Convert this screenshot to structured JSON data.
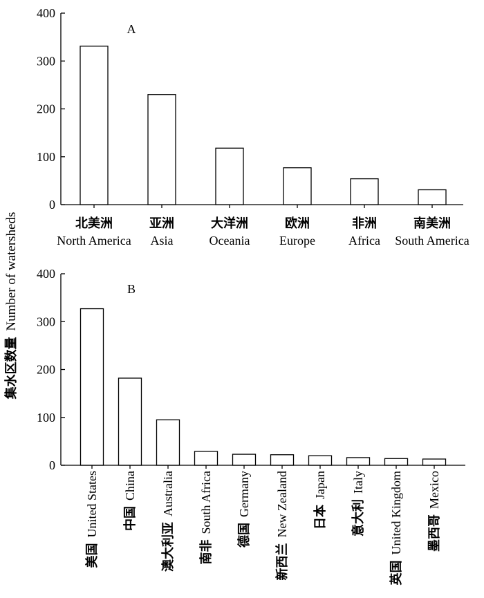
{
  "ylabel": {
    "cn": "集水区数量",
    "en": "Number of watersheds"
  },
  "chart_data": [
    {
      "type": "bar",
      "panel_label": "A",
      "ylim": [
        0,
        400
      ],
      "yticks": [
        "0",
        "100",
        "200",
        "300",
        "400"
      ],
      "categories": [
        {
          "cn": "北美洲",
          "en": "North America"
        },
        {
          "cn": "亚洲",
          "en": "Asia"
        },
        {
          "cn": "大洋洲",
          "en": "Oceania"
        },
        {
          "cn": "欧洲",
          "en": "Europe"
        },
        {
          "cn": "非洲",
          "en": "Africa"
        },
        {
          "cn": "南美洲",
          "en": "South America"
        }
      ],
      "values": [
        331,
        230,
        118,
        77,
        54,
        31
      ]
    },
    {
      "type": "bar",
      "panel_label": "B",
      "ylim": [
        0,
        400
      ],
      "yticks": [
        "0",
        "100",
        "200",
        "300",
        "400"
      ],
      "categories": [
        {
          "cn": "美国",
          "en": "United States"
        },
        {
          "cn": "中国",
          "en": "China"
        },
        {
          "cn": "澳大利亚",
          "en": "Australia"
        },
        {
          "cn": "南非",
          "en": "South Africa"
        },
        {
          "cn": "德国",
          "en": "Germany"
        },
        {
          "cn": "新西兰",
          "en": "New Zealand"
        },
        {
          "cn": "日本",
          "en": "Japan"
        },
        {
          "cn": "意大利",
          "en": "Italy"
        },
        {
          "cn": "英国",
          "en": "United Kingdom"
        },
        {
          "cn": "墨西哥",
          "en": "Mexico"
        }
      ],
      "values": [
        327,
        182,
        95,
        29,
        23,
        22,
        20,
        16,
        14,
        13
      ]
    }
  ]
}
